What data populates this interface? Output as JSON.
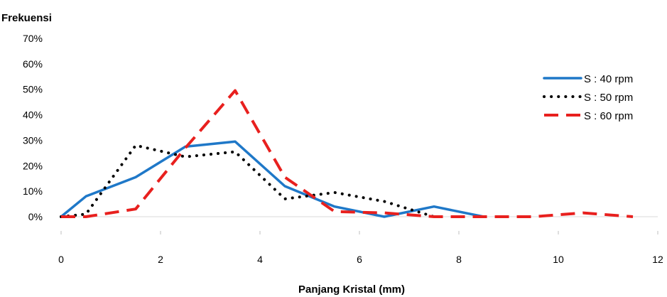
{
  "chart_data": {
    "type": "line",
    "ylabel": "Frekuensi",
    "xlabel": "Panjang Kristal (mm)",
    "xlim": [
      0,
      12
    ],
    "ylim": [
      0,
      0.7
    ],
    "xticks": [
      "0",
      "2",
      "4",
      "6",
      "8",
      "10",
      "12"
    ],
    "yticks": [
      "0%",
      "10%",
      "20%",
      "30%",
      "40%",
      "50%",
      "60%",
      "70%"
    ],
    "grid": false,
    "legend_position": "right",
    "series": [
      {
        "name": "S : 40 rpm",
        "color": "#1f78c8",
        "style": "solid",
        "x": [
          0,
          0.5,
          1.5,
          2.5,
          3.5,
          4.5,
          5.5,
          6.5,
          7.5,
          8.5
        ],
        "y": [
          0.0,
          0.08,
          0.155,
          0.275,
          0.295,
          0.12,
          0.04,
          0.0,
          0.04,
          0.0
        ]
      },
      {
        "name": "S : 50 rpm",
        "color": "#000000",
        "style": "dotted",
        "x": [
          0,
          0.5,
          1.5,
          2.5,
          3.5,
          4.5,
          5.5,
          6.5,
          7.5
        ],
        "y": [
          0.0,
          0.01,
          0.28,
          0.235,
          0.255,
          0.07,
          0.095,
          0.06,
          0.0
        ]
      },
      {
        "name": "S : 60 rpm",
        "color": "#e8201e",
        "style": "dashed",
        "x": [
          0,
          0.5,
          1.5,
          2.5,
          3.5,
          4.5,
          5.5,
          6.5,
          7.5,
          8.5,
          9.5,
          10.5,
          11.5
        ],
        "y": [
          0.0,
          0.0,
          0.03,
          0.27,
          0.495,
          0.155,
          0.02,
          0.015,
          0.0,
          0.0,
          0.0,
          0.015,
          0.0
        ]
      }
    ]
  }
}
